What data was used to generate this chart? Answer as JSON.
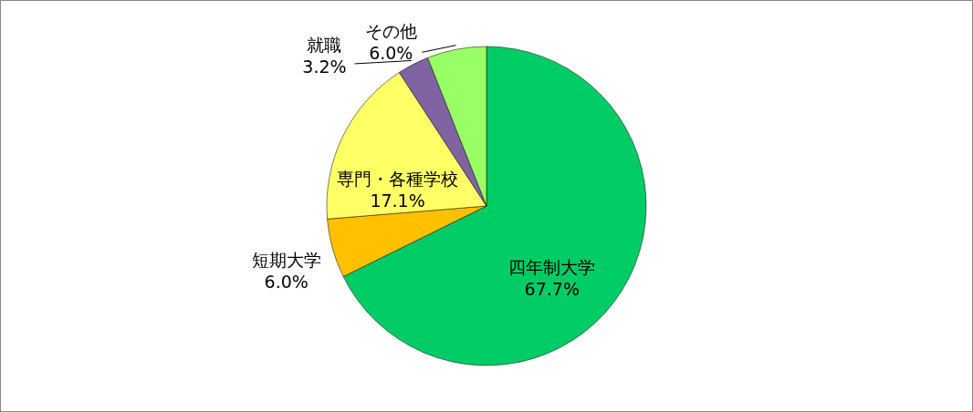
{
  "chart_data": {
    "type": "pie",
    "categories": [
      "四年制大学",
      "短期大学",
      "専門・各種学校",
      "就職",
      "その他"
    ],
    "values": [
      67.7,
      6.0,
      17.1,
      3.2,
      6.0
    ],
    "value_labels": [
      "67.7%",
      "6.0%",
      "17.1%",
      "3.2%",
      "6.0%"
    ],
    "colors": [
      "#00cc66",
      "#ffc000",
      "#ffff66",
      "#8064a2",
      "#99ff66"
    ]
  }
}
